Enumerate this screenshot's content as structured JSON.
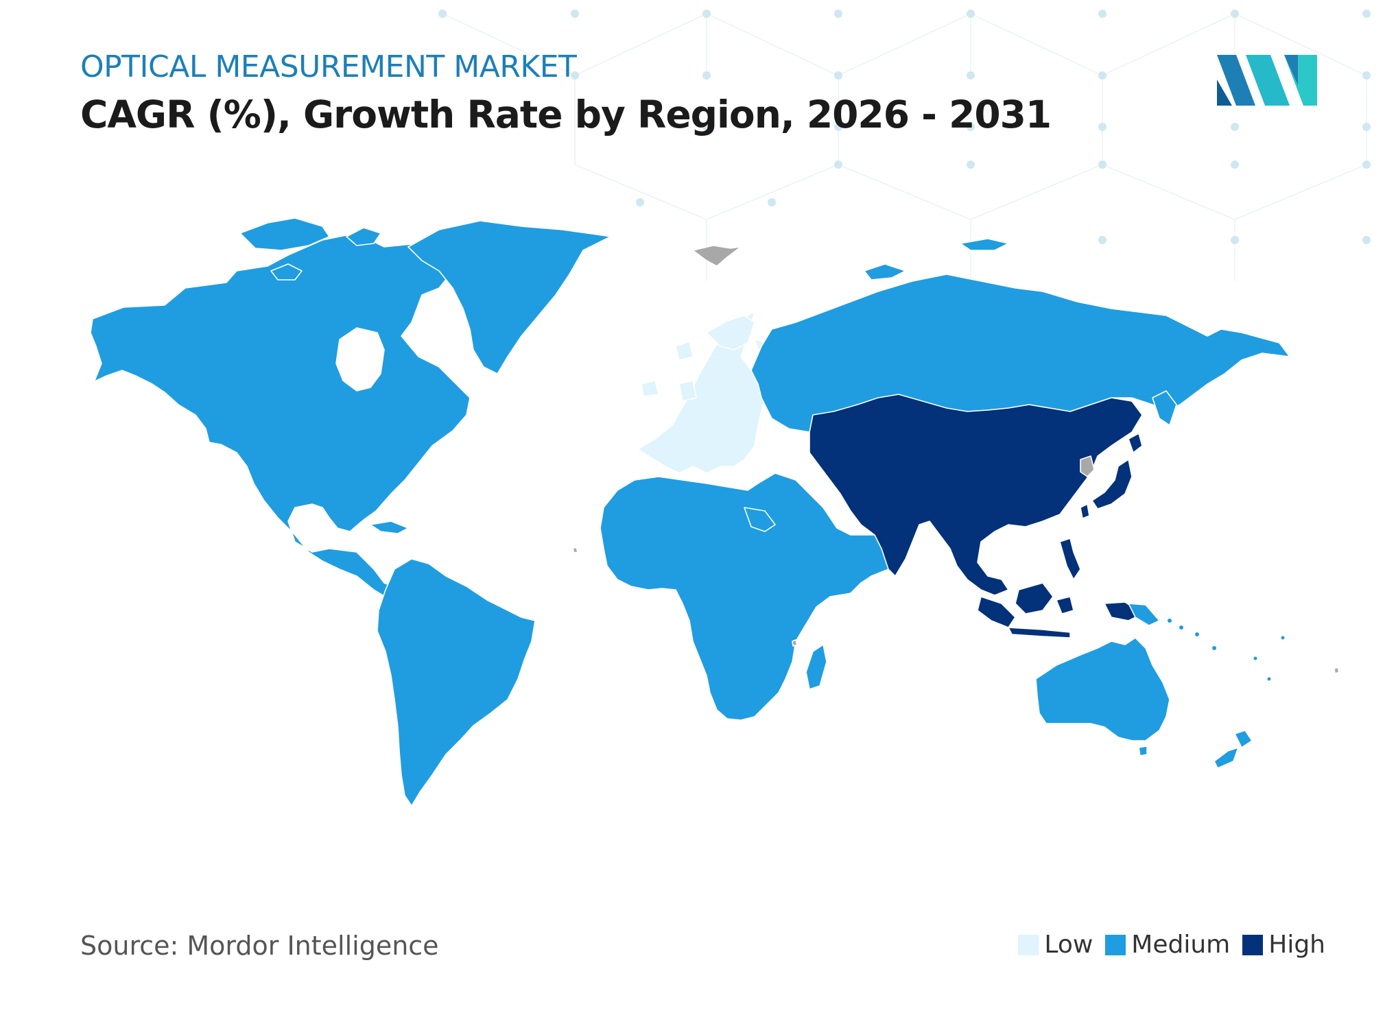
{
  "header": {
    "subtitle": "OPTICAL MEASUREMENT MARKET",
    "title": "CAGR (%), Growth Rate by Region, 2026 - 2031"
  },
  "footer": {
    "source": "Source: Mordor Intelligence"
  },
  "legend": [
    {
      "label": "Low",
      "color": "#dff4fc"
    },
    {
      "label": "Medium",
      "color": "#1f9de0"
    },
    {
      "label": "High",
      "color": "#03317a"
    }
  ],
  "regions": {
    "north_america": {
      "level": "Medium"
    },
    "south_america": {
      "level": "Medium"
    },
    "europe": {
      "level": "Low"
    },
    "middle_east_africa": {
      "level": "Medium"
    },
    "russia": {
      "level": "Medium"
    },
    "asia_pacific": {
      "level": "High"
    },
    "australia_nz": {
      "level": "Medium"
    }
  },
  "colors": {
    "no_data": "#a8a8a8",
    "border": "#ffffff"
  },
  "logo": {
    "icon": "mordor-logo-icon"
  }
}
